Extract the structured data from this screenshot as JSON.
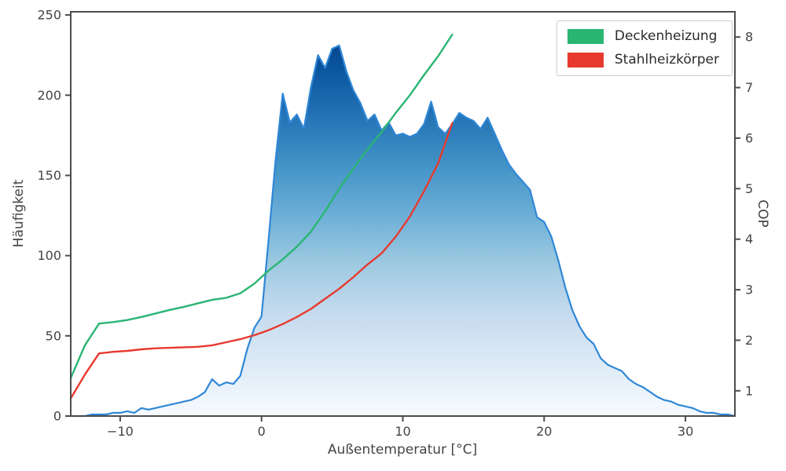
{
  "chart_data": {
    "type": "area",
    "title": "",
    "xlabel": "Außentemperatur [°C]",
    "ylabel_left": "Häufigkeit",
    "ylabel_right": "COP",
    "xlim": [
      -13.5,
      33.5
    ],
    "ylim_left": [
      0,
      252
    ],
    "ylim_right": [
      0.5,
      8.5
    ],
    "grid": false,
    "axis_color": "#4d4d4d",
    "tick_label_color": "#444444",
    "xtick_values": [
      -10,
      0,
      10,
      20,
      30
    ],
    "xtick_labels": [
      "−10",
      "0",
      "10",
      "20",
      "30"
    ],
    "ytick_left_values": [
      0,
      50,
      100,
      150,
      200,
      250
    ],
    "ytick_left_labels": [
      "0",
      "50",
      "100",
      "150",
      "200",
      "250"
    ],
    "ytick_right_values": [
      1,
      2,
      3,
      4,
      5,
      6,
      7,
      8
    ],
    "ytick_right_labels": [
      "1",
      "2",
      "3",
      "4",
      "5",
      "6",
      "7",
      "8"
    ],
    "legend": {
      "position": "upper right",
      "entries": [
        {
          "label": "Deckenheizung",
          "color": "#2ab573"
        },
        {
          "label": "Stahlheizkörper",
          "color": "#e8392f"
        }
      ]
    },
    "histogram": {
      "name": "Häufigkeit der Außentemperatur",
      "axis": "left",
      "line_color": "#2f87d6",
      "fill_gradient_top_to_bottom": [
        "#08306b",
        "#08519c",
        "#2171b5",
        "#4292c6",
        "#6baed6",
        "#9ecae1",
        "#c6dbef",
        "#deebf7",
        "#f7fbff"
      ],
      "x": [
        -13.5,
        -13,
        -12.5,
        -12,
        -11.5,
        -11,
        -10.5,
        -10,
        -9.5,
        -9,
        -8.5,
        -8,
        -7.5,
        -7,
        -6.5,
        -6,
        -5.5,
        -5,
        -4.5,
        -4,
        -3.5,
        -3,
        -2.5,
        -2,
        -1.5,
        -1,
        -0.5,
        0,
        0.5,
        1,
        1.5,
        2,
        2.5,
        3,
        3.5,
        4,
        4.5,
        5,
        5.5,
        6,
        6.5,
        7,
        7.5,
        8,
        8.5,
        9,
        9.5,
        10,
        10.5,
        11,
        11.5,
        12,
        12.5,
        13,
        13.5,
        14,
        14.5,
        15,
        15.5,
        16,
        16.5,
        17,
        17.5,
        18,
        18.5,
        19,
        19.5,
        20,
        20.5,
        21,
        21.5,
        22,
        22.5,
        23,
        23.5,
        24,
        24.5,
        25,
        25.5,
        26,
        26.5,
        27,
        27.5,
        28,
        28.5,
        29,
        29.5,
        30,
        30.5,
        31,
        31.5,
        32,
        32.5,
        33,
        33.5
      ],
      "y": [
        0,
        0,
        0,
        1,
        1,
        1,
        2,
        2,
        3,
        2,
        5,
        4,
        5,
        6,
        7,
        8,
        9,
        10,
        12,
        15,
        23,
        19,
        21,
        20,
        25,
        42,
        55,
        62,
        110,
        160,
        201,
        183,
        188,
        179,
        205,
        225,
        217,
        229,
        231,
        215,
        203,
        195,
        184,
        188,
        178,
        183,
        175,
        176,
        174,
        176,
        182,
        196,
        180,
        176,
        182,
        189,
        186,
        184,
        179,
        186,
        176,
        166,
        157,
        151,
        146,
        141,
        124,
        121,
        112,
        97,
        80,
        66,
        56,
        49,
        45,
        36,
        32,
        30,
        28,
        23,
        20,
        18,
        15,
        12,
        10,
        9,
        7,
        6,
        5,
        3,
        2,
        2,
        1,
        1,
        0
      ]
    },
    "series": [
      {
        "name": "Deckenheizung",
        "axis": "right",
        "color": "#2ab573",
        "x": [
          -13.5,
          -12.5,
          -11.5,
          -10.5,
          -9.5,
          -8.5,
          -7.5,
          -6.5,
          -5.5,
          -4.5,
          -3.5,
          -2.5,
          -1.5,
          -0.5,
          0.5,
          1.5,
          2.5,
          3.5,
          4.5,
          5.5,
          6.5,
          7.5,
          8.5,
          9.5,
          10.5,
          11.5,
          12.5,
          13.5
        ],
        "y": [
          1.25,
          1.9,
          2.33,
          2.36,
          2.4,
          2.46,
          2.53,
          2.6,
          2.66,
          2.73,
          2.8,
          2.84,
          2.93,
          3.12,
          3.38,
          3.6,
          3.85,
          4.15,
          4.55,
          5.0,
          5.4,
          5.78,
          6.12,
          6.5,
          6.85,
          7.25,
          7.62,
          8.05
        ]
      },
      {
        "name": "Stahlheizkörper",
        "axis": "right",
        "color": "#e8392f",
        "x": [
          -13.5,
          -12.5,
          -11.5,
          -10.5,
          -9.5,
          -8.5,
          -7.5,
          -6.5,
          -5.5,
          -4.5,
          -3.5,
          -2.5,
          -1.5,
          -0.5,
          0.5,
          1.5,
          2.5,
          3.5,
          4.5,
          5.5,
          6.5,
          7.5,
          8.5,
          9.5,
          10.5,
          11.5,
          12.5,
          13.5
        ],
        "y": [
          0.85,
          1.32,
          1.74,
          1.77,
          1.79,
          1.82,
          1.84,
          1.85,
          1.86,
          1.87,
          1.9,
          1.96,
          2.02,
          2.1,
          2.2,
          2.32,
          2.46,
          2.62,
          2.82,
          3.02,
          3.25,
          3.5,
          3.72,
          4.05,
          4.45,
          4.95,
          5.5,
          6.3
        ]
      }
    ]
  }
}
